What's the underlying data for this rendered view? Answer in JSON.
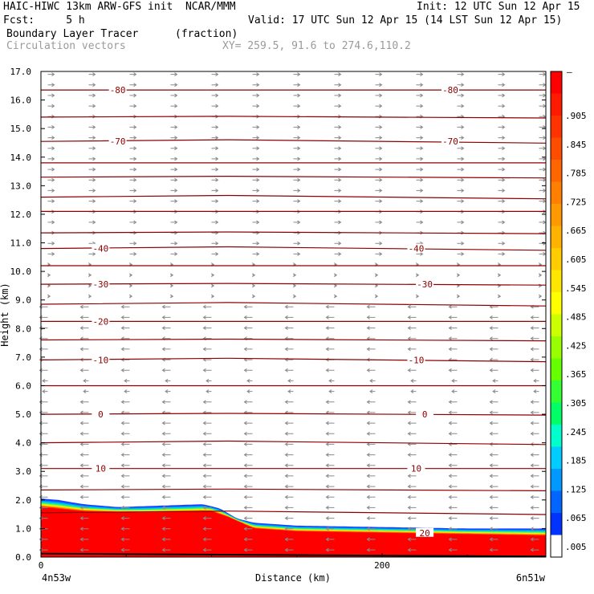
{
  "header": {
    "line1_left": "HAIC-HIWC 13km ARW-GFS init  NCAR/MMM",
    "line1_right": "Init: 12 UTC Sun 12 Apr 15",
    "line2_left": "Fcst:     5 h",
    "line2_right": "Valid: 17 UTC Sun 12 Apr 15 (14 LST Sun 12 Apr 15)",
    "line3_left": "Boundary Layer Tracer",
    "line3_unit": "(fraction)",
    "line4_left": "Circulation vectors",
    "line4_xy": "XY= 259.5, 91.6 to 274.6,110.2"
  },
  "chart_data": {
    "type": "heatmap",
    "field_name": "Boundary Layer Tracer",
    "field_unit": "(fraction)",
    "overlays": [
      "Circulation vectors",
      "temperature contours"
    ],
    "ylabel": "Height (km)",
    "xlabel": "Distance (km)",
    "xlim": [
      0,
      296
    ],
    "ylim": [
      0,
      17
    ],
    "y_ticks": [
      "0.0",
      "1.0",
      "2.0",
      "3.0",
      "4.0",
      "5.0",
      "6.0",
      "7.0",
      "8.0",
      "9.0",
      "10.0",
      "11.0",
      "12.0",
      "13.0",
      "14.0",
      "15.0",
      "16.0",
      "17.0"
    ],
    "x_ticks": [
      {
        "value": 0,
        "label": "0"
      },
      {
        "value": 200,
        "label": "200"
      }
    ],
    "x_endpoints": {
      "left": "4n53w",
      "right": "6n51w"
    },
    "colorbar": {
      "top_label": "–",
      "labels": [
        ".905",
        ".845",
        ".785",
        ".725",
        ".665",
        ".605",
        ".545",
        ".485",
        ".425",
        ".365",
        ".305",
        ".245",
        ".185",
        ".125",
        ".065",
        ".005"
      ],
      "colors": [
        "#ff0000",
        "#ff1a00",
        "#ff3300",
        "#ff4d00",
        "#ff6600",
        "#ff8000",
        "#ff9900",
        "#ffb300",
        "#ffcc00",
        "#ffe600",
        "#ffff00",
        "#ccff00",
        "#99ff00",
        "#66ff00",
        "#33ff33",
        "#00ff66",
        "#00ffcc",
        "#00ccff",
        "#0099ff",
        "#0066ff",
        "#0033ff",
        "#ffffff"
      ]
    },
    "tracer_top_km": [
      [
        0,
        2.05
      ],
      [
        10,
        2.0
      ],
      [
        25,
        1.85
      ],
      [
        45,
        1.75
      ],
      [
        70,
        1.8
      ],
      [
        95,
        1.85
      ],
      [
        105,
        1.7
      ],
      [
        115,
        1.35
      ],
      [
        125,
        1.2
      ],
      [
        150,
        1.1
      ],
      [
        200,
        1.05
      ],
      [
        250,
        1.0
      ],
      [
        296,
        1.0
      ]
    ],
    "tracer_core_top_km": [
      [
        0,
        1.75
      ],
      [
        25,
        1.6
      ],
      [
        60,
        1.55
      ],
      [
        100,
        1.6
      ],
      [
        110,
        1.4
      ],
      [
        125,
        1.0
      ],
      [
        150,
        0.9
      ],
      [
        200,
        0.85
      ],
      [
        250,
        0.8
      ],
      [
        296,
        0.75
      ]
    ],
    "contour_heights_km": [
      16.35,
      15.4,
      14.55,
      13.8,
      13.3,
      12.6,
      12.1,
      11.35,
      10.8,
      10.2,
      9.55,
      8.85,
      8.25,
      7.6,
      6.9,
      6.0,
      5.0,
      4.0,
      3.1,
      2.35,
      1.55
    ],
    "contour_labels": [
      {
        "text": "-80",
        "x": 45,
        "y": 16.35
      },
      {
        "text": "-80",
        "x": 240,
        "y": 16.35
      },
      {
        "text": "-70",
        "x": 45,
        "y": 14.55
      },
      {
        "text": "-70",
        "x": 240,
        "y": 14.55
      },
      {
        "text": "-40",
        "x": 35,
        "y": 10.8
      },
      {
        "text": "-40",
        "x": 220,
        "y": 10.8
      },
      {
        "text": "-30",
        "x": 35,
        "y": 9.55
      },
      {
        "text": "-30",
        "x": 225,
        "y": 9.55
      },
      {
        "text": "-20",
        "x": 35,
        "y": 8.25
      },
      {
        "text": "-10",
        "x": 35,
        "y": 6.9
      },
      {
        "text": "-10",
        "x": 220,
        "y": 6.9
      },
      {
        "text": "0",
        "x": 35,
        "y": 5.0
      },
      {
        "text": "0",
        "x": 225,
        "y": 5.0
      },
      {
        "text": "10",
        "x": 35,
        "y": 3.1
      },
      {
        "text": "10",
        "x": 220,
        "y": 3.1
      },
      {
        "text": "20",
        "x": 225,
        "y": 0.85
      }
    ]
  }
}
